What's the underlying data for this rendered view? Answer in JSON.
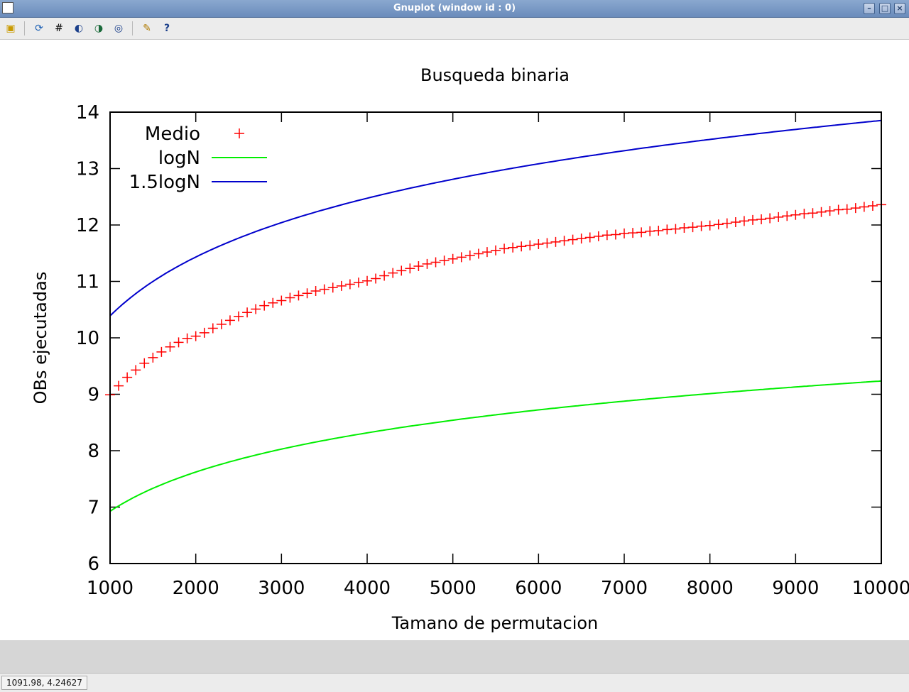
{
  "window": {
    "title": "Gnuplot (window id : 0)",
    "controls": [
      "minimize-icon",
      "maximize-icon",
      "close-icon"
    ]
  },
  "toolbar": {
    "icons": [
      "copy-to-clipboard-icon",
      "replot-icon",
      "grid-icon",
      "zoom-previous-icon",
      "zoom-next-icon",
      "unzoom-icon",
      "options-icon",
      "help-icon"
    ]
  },
  "statusbar": {
    "coords": "1091.98,  4.24627"
  },
  "colors": {
    "medio": "#ff0000",
    "logN": "#00ee00",
    "logN15": "#0000cc"
  },
  "chart_data": {
    "type": "line",
    "title": "Busqueda binaria",
    "xlabel": "Tamano de permutacion",
    "ylabel": "OBs ejecutadas",
    "xlim": [
      1000,
      10000
    ],
    "ylim": [
      6,
      14
    ],
    "xticks": [
      "1000",
      "2000",
      "3000",
      "4000",
      "5000",
      "6000",
      "7000",
      "8000",
      "9000",
      "10000"
    ],
    "yticks": [
      "6",
      "7",
      "8",
      "9",
      "10",
      "11",
      "12",
      "13",
      "14"
    ],
    "grid": false,
    "legend_position": "top-left",
    "series": [
      {
        "name": "Medio",
        "style": "points",
        "x": [
          1000,
          1100,
          1200,
          1300,
          1400,
          1500,
          1600,
          1700,
          1800,
          1900,
          2000,
          2100,
          2200,
          2300,
          2400,
          2500,
          2600,
          2700,
          2800,
          2900,
          3000,
          3100,
          3200,
          3300,
          3400,
          3500,
          3600,
          3700,
          3800,
          3900,
          4000,
          4100,
          4200,
          4300,
          4400,
          4500,
          4600,
          4700,
          4800,
          4900,
          5000,
          5100,
          5200,
          5300,
          5400,
          5500,
          5600,
          5700,
          5800,
          5900,
          6000,
          6100,
          6200,
          6300,
          6400,
          6500,
          6600,
          6700,
          6800,
          6900,
          7000,
          7100,
          7200,
          7300,
          7400,
          7500,
          7600,
          7700,
          7800,
          7900,
          8000,
          8100,
          8200,
          8300,
          8400,
          8500,
          8600,
          8700,
          8800,
          8900,
          9000,
          9100,
          9200,
          9300,
          9400,
          9500,
          9600,
          9700,
          9800,
          9900,
          10000
        ],
        "y": [
          8.99,
          9.15,
          9.3,
          9.43,
          9.55,
          9.65,
          9.75,
          9.84,
          9.92,
          9.99,
          10.03,
          10.09,
          10.17,
          10.24,
          10.31,
          10.38,
          10.45,
          10.51,
          10.57,
          10.62,
          10.66,
          10.71,
          10.75,
          10.79,
          10.83,
          10.86,
          10.89,
          10.92,
          10.95,
          10.98,
          11.01,
          11.05,
          11.1,
          11.15,
          11.19,
          11.23,
          11.27,
          11.31,
          11.34,
          11.37,
          11.4,
          11.43,
          11.46,
          11.49,
          11.52,
          11.55,
          11.58,
          11.6,
          11.62,
          11.64,
          11.66,
          11.68,
          11.7,
          11.72,
          11.74,
          11.76,
          11.78,
          11.8,
          11.82,
          11.83,
          11.85,
          11.86,
          11.87,
          11.89,
          11.9,
          11.92,
          11.93,
          11.95,
          11.96,
          11.98,
          11.99,
          12.01,
          12.03,
          12.05,
          12.07,
          12.09,
          12.1,
          12.12,
          12.14,
          12.16,
          12.18,
          12.2,
          12.21,
          12.23,
          12.25,
          12.27,
          12.28,
          12.3,
          12.32,
          12.34,
          12.36
        ]
      },
      {
        "name": "logN",
        "style": "line",
        "function": "log2(x)*0.695"
      },
      {
        "name": "1.5logN",
        "style": "line",
        "function": "1.5*log2(x)*0.695"
      }
    ]
  }
}
